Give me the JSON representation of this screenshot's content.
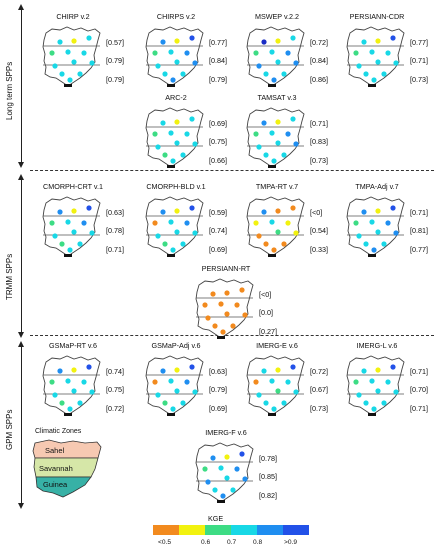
{
  "sections": [
    {
      "label": "Long term SPPs"
    },
    {
      "label": "TRMM SPPs"
    },
    {
      "label": "GPM SPPs"
    }
  ],
  "panels": [
    {
      "title": "CHIRP v.2",
      "values": [
        "[0.57]",
        "[0.79]",
        "[0.79]"
      ],
      "dots": [
        "c_cyan",
        "c_yel",
        "c_cyan",
        "c_green",
        "c_cyan",
        "c_cyan",
        "c_cyan",
        "c_cyan",
        "c_cyan",
        "c_cyan",
        "c_cyan",
        "c_cyan"
      ]
    },
    {
      "title": "CHIRPS v.2",
      "values": [
        "[0.77]",
        "[0.84]",
        "[0.79]"
      ],
      "dots": [
        "c_blue",
        "c_yel",
        "c_lblue",
        "c_green",
        "c_cyan",
        "c_lblue",
        "c_lblue",
        "c_cyan",
        "c_cyan",
        "c_cyan",
        "c_cyan",
        "c_lblue"
      ]
    },
    {
      "title": "MSWEP v.2.2",
      "values": [
        "[0.72]",
        "[0.84]",
        "[0.86]"
      ],
      "dots": [
        "c_cyan",
        "c_yel",
        "c_dblue",
        "c_green",
        "c_cyan",
        "c_lblue",
        "c_lblue",
        "c_cyan",
        "c_lblue",
        "c_cyan",
        "c_cyan",
        "c_lblue"
      ]
    },
    {
      "title": "PERSIANN-CDR",
      "values": [
        "[0.77]",
        "[0.71]",
        "[0.73]"
      ],
      "dots": [
        "c_blue",
        "c_yel",
        "c_cyan",
        "c_green",
        "c_cyan",
        "c_cyan",
        "c_cyan",
        "c_cyan",
        "c_cyan",
        "c_cyan",
        "c_cyan",
        "c_cyan"
      ]
    },
    {
      "title": "ARC-2",
      "values": [
        "[0.69]",
        "[0.75]",
        "[0.66]"
      ],
      "dots": [
        "c_cyan",
        "c_yel",
        "c_cyan",
        "c_green",
        "c_cyan",
        "c_cyan",
        "c_cyan",
        "c_cyan",
        "c_cyan",
        "c_green",
        "c_cyan",
        "c_cyan"
      ]
    },
    {
      "title": "TAMSAT v.3",
      "values": [
        "[0.71]",
        "[0.83]",
        "[0.73]"
      ],
      "dots": [
        "c_cyan",
        "c_yel",
        "c_lblue",
        "c_green",
        "c_cyan",
        "c_lblue",
        "c_lblue",
        "c_cyan",
        "c_cyan",
        "c_cyan",
        "c_cyan",
        "c_cyan"
      ]
    },
    {
      "title": "CMORPH-CRT v.1",
      "values": [
        "[0.63]",
        "[0.78]",
        "[0.71]"
      ],
      "dots": [
        "c_blue",
        "c_yel",
        "c_lblue",
        "c_green",
        "c_cyan",
        "c_lblue",
        "c_cyan",
        "c_cyan",
        "c_cyan",
        "c_green",
        "c_cyan",
        "c_cyan"
      ]
    },
    {
      "title": "CMORPH-BLD v.1",
      "values": [
        "[0.59]",
        "[0.74]",
        "[0.69]"
      ],
      "dots": [
        "c_blue",
        "c_yel",
        "c_lblue",
        "c_orange",
        "c_cyan",
        "c_lblue",
        "c_cyan",
        "c_cyan",
        "c_cyan",
        "c_green",
        "c_cyan",
        "c_cyan"
      ]
    },
    {
      "title": "TMPA-RT v.7",
      "values": [
        "[<0]",
        "[0.54]",
        "[0.33]"
      ],
      "dots": [
        "c_orange",
        "c_orange",
        "c_lblue",
        "c_yel",
        "c_cyan",
        "c_yel",
        "c_yel",
        "c_green",
        "c_orange",
        "c_orange",
        "c_orange",
        "c_orange"
      ]
    },
    {
      "title": "TMPA-Adj v.7",
      "values": [
        "[0.71]",
        "[0.81]",
        "[0.77]"
      ],
      "dots": [
        "c_blue",
        "c_yel",
        "c_lblue",
        "c_green",
        "c_cyan",
        "c_lblue",
        "c_lblue",
        "c_cyan",
        "c_cyan",
        "c_cyan",
        "c_cyan",
        "c_lblue"
      ]
    },
    {
      "title": "PERSIANN-RT",
      "values": [
        "[<0]",
        "[0.0]",
        "[0.27]"
      ],
      "dots": [
        "c_orange",
        "c_orange",
        "c_orange",
        "c_orange",
        "c_orange",
        "c_orange",
        "c_orange",
        "c_orange",
        "c_orange",
        "c_orange",
        "c_orange",
        "c_orange"
      ]
    },
    {
      "title": "GSMaP-RT v.6",
      "values": [
        "[0.74]",
        "[0.75]",
        "[0.72]"
      ],
      "dots": [
        "c_blue",
        "c_yel",
        "c_lblue",
        "c_green",
        "c_cyan",
        "c_cyan",
        "c_cyan",
        "c_cyan",
        "c_cyan",
        "c_green",
        "c_cyan",
        "c_cyan"
      ]
    },
    {
      "title": "GSMaP-Adj v.6",
      "values": [
        "[0.63]",
        "[0.79]",
        "[0.69]"
      ],
      "dots": [
        "c_blue",
        "c_yel",
        "c_lblue",
        "c_orange",
        "c_cyan",
        "c_lblue",
        "c_cyan",
        "c_cyan",
        "c_cyan",
        "c_green",
        "c_cyan",
        "c_cyan"
      ]
    },
    {
      "title": "IMERG-E v.6",
      "values": [
        "[0.72]",
        "[0.67]",
        "[0.73]"
      ],
      "dots": [
        "c_blue",
        "c_yel",
        "c_cyan",
        "c_orange",
        "c_cyan",
        "c_cyan",
        "c_cyan",
        "c_green",
        "c_cyan",
        "c_cyan",
        "c_cyan",
        "c_cyan"
      ]
    },
    {
      "title": "IMERG-L v.6",
      "values": [
        "[0.71]",
        "[0.70]",
        "[0.71]"
      ],
      "dots": [
        "c_blue",
        "c_yel",
        "c_cyan",
        "c_green",
        "c_cyan",
        "c_cyan",
        "c_cyan",
        "c_cyan",
        "c_cyan",
        "c_cyan",
        "c_cyan",
        "c_cyan"
      ]
    },
    {
      "title": "IMERG-F v.6",
      "values": [
        "[0.78]",
        "[0.85]",
        "[0.82]"
      ],
      "dots": [
        "c_blue",
        "c_yel",
        "c_lblue",
        "c_green",
        "c_cyan",
        "c_lblue",
        "c_lblue",
        "c_cyan",
        "c_lblue",
        "c_cyan",
        "c_cyan",
        "c_lblue"
      ]
    }
  ],
  "colors": {
    "c_orange": "#f28a1e",
    "c_yel": "#f2f20f",
    "c_green": "#3ddc84",
    "c_cyan": "#18d8e6",
    "c_lblue": "#1f8ef0",
    "c_blue": "#2251e8",
    "c_dblue": "#1a2cc4"
  },
  "zones": {
    "title": "Climatic Zones",
    "sahel": "Sahel",
    "savannah": "Savannah",
    "guinea": "Guinea",
    "sahel_color": "#f6c9b2",
    "savannah_color": "#d6e7a8",
    "guinea_color": "#37b1a6"
  },
  "legend": {
    "title": "KGE",
    "colors": [
      "#f28a1e",
      "#f2f20f",
      "#3ddc84",
      "#18d8e6",
      "#1f8ef0",
      "#2251e8"
    ],
    "ticks": [
      "<0.5",
      "0.6",
      "0.7",
      "0.8",
      ">0.9"
    ]
  }
}
